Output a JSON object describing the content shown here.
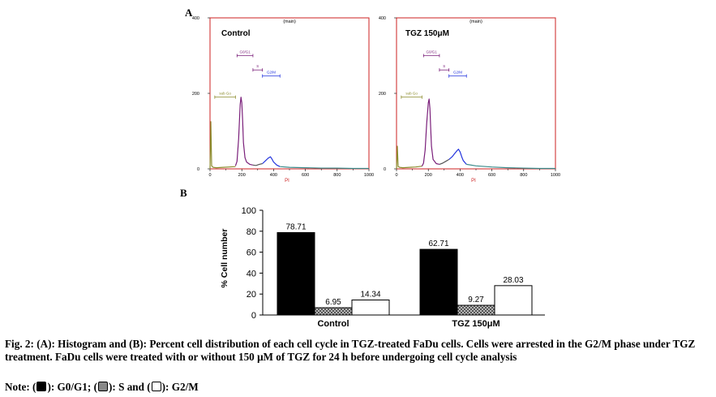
{
  "figure": {
    "panel_a_label": "A",
    "panel_b_label": "B",
    "caption": "Fig. 2: (A): Histogram and (B): Percent cell distribution of each cell cycle in TGZ-treated FaDu cells. Cells were arrested in the G2/M phase under TGZ treatment. FaDu cells were treated with or without 150 μM of TGZ for 24 h before undergoing cell cycle analysis",
    "note_prefix": "Note: (",
    "note_g0g1": "): G0/G1; (",
    "note_s": "): S and (",
    "note_g2m": "): G2/M"
  },
  "colors": {
    "frame": "#cc2222",
    "g0g1": "#7a1f7a",
    "s_phase": "#555555",
    "g2m": "#2233dd",
    "subg0": "#8a8a2a",
    "bar_g0g1": "#000000",
    "bar_s": "#888888",
    "bar_g2m": "#ffffff"
  },
  "chart_data": [
    {
      "type": "line",
      "title": "Control",
      "header": "(main)",
      "xlabel": "PI",
      "xlim": [
        0,
        1000
      ],
      "ylim": [
        0,
        400
      ],
      "xticks": [
        "0",
        "200",
        "400",
        "600",
        "800",
        "1000"
      ],
      "yticks": [
        "0",
        "200",
        "400"
      ],
      "gates": [
        {
          "label": "sub Go",
          "range": [
            30,
            160
          ]
        },
        {
          "label": "G0/G1",
          "range": [
            170,
            270
          ]
        },
        {
          "label": "S",
          "range": [
            270,
            330
          ]
        },
        {
          "label": "G2/M",
          "range": [
            330,
            440
          ]
        }
      ],
      "series": [
        {
          "phase": "subg0",
          "x": [
            0,
            5,
            10,
            20,
            40,
            80,
            120,
            160
          ],
          "y": [
            0,
            125,
            8,
            4,
            3,
            4,
            5,
            6
          ]
        },
        {
          "phase": "g0g1",
          "x": [
            160,
            170,
            180,
            190,
            195,
            200,
            205,
            210,
            220,
            230,
            250,
            270
          ],
          "y": [
            8,
            20,
            80,
            170,
            190,
            175,
            130,
            70,
            30,
            18,
            12,
            10
          ]
        },
        {
          "phase": "s",
          "x": [
            270,
            290,
            310,
            330
          ],
          "y": [
            10,
            9,
            12,
            14
          ]
        },
        {
          "phase": "g2m",
          "x": [
            330,
            350,
            365,
            380,
            390,
            400,
            420,
            440
          ],
          "y": [
            14,
            22,
            28,
            32,
            26,
            18,
            10,
            6
          ]
        },
        {
          "phase": "tail",
          "x": [
            440,
            500,
            600,
            700,
            800,
            900,
            1000
          ],
          "y": [
            6,
            4,
            3,
            2,
            2,
            1,
            1
          ]
        }
      ]
    },
    {
      "type": "line",
      "title": "TGZ 150μM",
      "header": "(main)",
      "xlabel": "PI",
      "xlim": [
        0,
        1000
      ],
      "ylim": [
        0,
        400
      ],
      "xticks": [
        "0",
        "200",
        "400",
        "600",
        "800",
        "1000"
      ],
      "yticks": [
        "0",
        "200",
        "400"
      ],
      "gates": [
        {
          "label": "sub Go",
          "range": [
            30,
            160
          ]
        },
        {
          "label": "G0/G1",
          "range": [
            170,
            270
          ]
        },
        {
          "label": "S",
          "range": [
            270,
            330
          ]
        },
        {
          "label": "G2/M",
          "range": [
            330,
            440
          ]
        }
      ],
      "series": [
        {
          "phase": "subg0",
          "x": [
            0,
            5,
            10,
            20,
            40,
            80,
            120,
            160
          ],
          "y": [
            0,
            60,
            6,
            4,
            3,
            4,
            5,
            7
          ]
        },
        {
          "phase": "g0g1",
          "x": [
            160,
            170,
            180,
            190,
            200,
            205,
            210,
            215,
            220,
            230,
            250,
            270
          ],
          "y": [
            7,
            15,
            50,
            120,
            175,
            185,
            160,
            110,
            60,
            25,
            14,
            12
          ]
        },
        {
          "phase": "s",
          "x": [
            270,
            290,
            310,
            330
          ],
          "y": [
            12,
            15,
            20,
            25
          ]
        },
        {
          "phase": "g2m",
          "x": [
            330,
            350,
            365,
            380,
            390,
            400,
            410,
            420,
            440
          ],
          "y": [
            25,
            32,
            40,
            48,
            52,
            45,
            32,
            22,
            12
          ]
        },
        {
          "phase": "tail",
          "x": [
            440,
            500,
            600,
            700,
            800,
            900,
            1000
          ],
          "y": [
            12,
            8,
            5,
            3,
            2,
            1,
            1
          ]
        }
      ]
    },
    {
      "type": "bar",
      "ylabel": "% Cell number",
      "ylim": [
        0,
        100
      ],
      "yticks": [
        0,
        20,
        40,
        60,
        80,
        100
      ],
      "categories": [
        "Control",
        "TGZ 150μM"
      ],
      "series": [
        {
          "phase": "g0g1",
          "values": [
            78.71,
            62.71
          ],
          "labels": [
            "78.71",
            "62.71"
          ]
        },
        {
          "phase": "s",
          "values": [
            6.95,
            9.27
          ],
          "labels": [
            "6.95",
            "9.27"
          ]
        },
        {
          "phase": "g2m",
          "values": [
            14.34,
            28.03
          ],
          "labels": [
            "14.34",
            "28.03"
          ]
        }
      ]
    }
  ]
}
